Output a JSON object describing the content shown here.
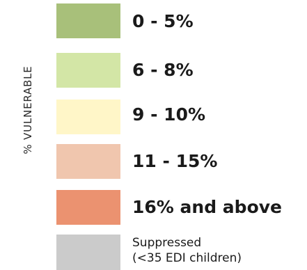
{
  "legend": {
    "title": "% VULNERABLE",
    "items": [
      {
        "label": "0 - 5%",
        "color": "#a8c07a"
      },
      {
        "label": "6 - 8%",
        "color": "#d3e6a6"
      },
      {
        "label": "9 - 10%",
        "color": "#fff6c8"
      },
      {
        "label": "11 - 15%",
        "color": "#f0c6ae"
      },
      {
        "label": "16% and above",
        "color": "#eb9270"
      },
      {
        "label_line1": "Suppressed",
        "label_line2": "(<35 EDI children)",
        "color": "#cbcbcb"
      }
    ]
  }
}
